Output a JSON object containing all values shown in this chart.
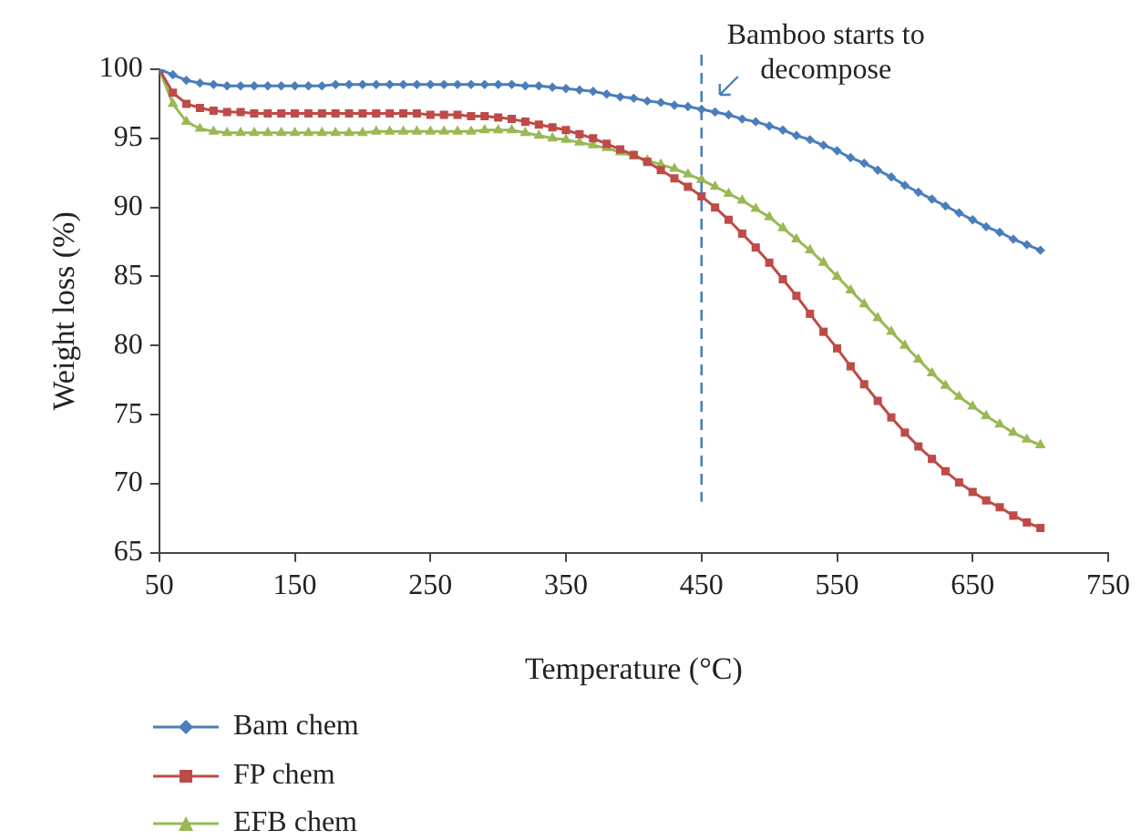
{
  "chart_data": {
    "type": "line",
    "xlabel": "Temperature (°C)",
    "ylabel": "Weight loss (%)",
    "x": [
      50,
      60,
      70,
      80,
      90,
      100,
      110,
      120,
      130,
      140,
      150,
      160,
      170,
      180,
      190,
      200,
      210,
      220,
      230,
      240,
      250,
      260,
      270,
      280,
      290,
      300,
      310,
      320,
      330,
      340,
      350,
      360,
      370,
      380,
      390,
      400,
      410,
      420,
      430,
      440,
      450,
      460,
      470,
      480,
      490,
      500,
      510,
      520,
      530,
      540,
      550,
      560,
      570,
      580,
      590,
      600,
      610,
      620,
      630,
      640,
      650,
      660,
      670,
      680,
      690,
      700
    ],
    "series": [
      {
        "name": "Bam chem",
        "color": "#4a7ebb",
        "marker": "diamond",
        "values": [
          100,
          99.6,
          99.2,
          99.0,
          98.9,
          98.8,
          98.8,
          98.8,
          98.8,
          98.8,
          98.8,
          98.8,
          98.8,
          98.9,
          98.9,
          98.9,
          98.9,
          98.9,
          98.9,
          98.9,
          98.9,
          98.9,
          98.9,
          98.9,
          98.9,
          98.9,
          98.9,
          98.8,
          98.8,
          98.7,
          98.6,
          98.5,
          98.4,
          98.2,
          98.0,
          97.9,
          97.7,
          97.6,
          97.4,
          97.3,
          97.1,
          96.9,
          96.7,
          96.4,
          96.2,
          95.9,
          95.6,
          95.2,
          94.9,
          94.5,
          94.1,
          93.6,
          93.2,
          92.7,
          92.2,
          91.6,
          91.1,
          90.6,
          90.1,
          89.6,
          89.1,
          88.6,
          88.2,
          87.7,
          87.3,
          86.9
        ]
      },
      {
        "name": "FP chem",
        "color": "#be4b48",
        "marker": "square",
        "values": [
          100,
          98.3,
          97.5,
          97.2,
          97.0,
          96.9,
          96.9,
          96.8,
          96.8,
          96.8,
          96.8,
          96.8,
          96.8,
          96.8,
          96.8,
          96.8,
          96.8,
          96.8,
          96.8,
          96.8,
          96.7,
          96.7,
          96.7,
          96.6,
          96.6,
          96.5,
          96.4,
          96.2,
          96.0,
          95.8,
          95.6,
          95.3,
          95.0,
          94.6,
          94.2,
          93.8,
          93.3,
          92.7,
          92.1,
          91.5,
          90.8,
          90.0,
          89.1,
          88.1,
          87.1,
          86.0,
          84.8,
          83.6,
          82.3,
          81.0,
          79.8,
          78.5,
          77.2,
          76.0,
          74.8,
          73.7,
          72.7,
          71.8,
          70.9,
          70.1,
          69.4,
          68.8,
          68.3,
          67.7,
          67.2,
          66.8
        ]
      },
      {
        "name": "EFB chem",
        "color": "#98b954",
        "marker": "triangle",
        "values": [
          100,
          97.5,
          96.2,
          95.7,
          95.5,
          95.4,
          95.4,
          95.4,
          95.4,
          95.4,
          95.4,
          95.4,
          95.4,
          95.4,
          95.4,
          95.4,
          95.5,
          95.5,
          95.5,
          95.5,
          95.5,
          95.5,
          95.5,
          95.5,
          95.6,
          95.6,
          95.6,
          95.4,
          95.2,
          95.0,
          94.9,
          94.7,
          94.5,
          94.3,
          94.0,
          93.7,
          93.4,
          93.1,
          92.8,
          92.4,
          92.0,
          91.5,
          91.0,
          90.5,
          89.9,
          89.3,
          88.5,
          87.7,
          86.9,
          86.0,
          85.0,
          84.0,
          83.0,
          82.0,
          81.0,
          80.0,
          79.0,
          78.0,
          77.1,
          76.3,
          75.6,
          74.9,
          74.3,
          73.7,
          73.2,
          72.8
        ]
      }
    ],
    "xlim": [
      50,
      750
    ],
    "xticks": [
      50,
      150,
      250,
      350,
      450,
      550,
      650,
      750
    ],
    "ylim": [
      65,
      100
    ],
    "yticks": [
      65,
      70,
      75,
      80,
      85,
      90,
      95,
      100
    ],
    "grid": false,
    "legend": "bottom",
    "line_style": "solid",
    "ref_lines": [
      {
        "axis": "x",
        "value": 450,
        "color": "#4a7ebb",
        "line_style": "dashed"
      }
    ],
    "annotations": [
      {
        "text": "Bamboo starts to decompose",
        "x": 450,
        "y": 97.1
      }
    ]
  }
}
